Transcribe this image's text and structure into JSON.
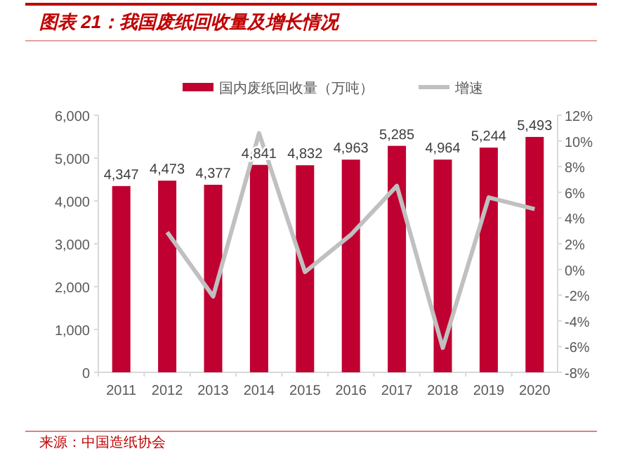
{
  "chart_data": {
    "type": "bar",
    "title": "图表 21：我国废纸回收量及增长情况",
    "categories": [
      "2011",
      "2012",
      "2013",
      "2014",
      "2015",
      "2016",
      "2017",
      "2018",
      "2019",
      "2020"
    ],
    "series": [
      {
        "name": "国内废纸回收量（万吨）",
        "color": "#c00030",
        "values": [
          4347,
          4473,
          4377,
          4841,
          4832,
          4963,
          5285,
          4964,
          5244,
          5493
        ],
        "value_labels": [
          "4,347",
          "4,473",
          "4,377",
          "4,841",
          "4,832",
          "4,963",
          "5,285",
          "4,964",
          "5,244",
          "5,493"
        ]
      },
      {
        "name": "增速",
        "type": "line",
        "axis": "y2",
        "color": "#c0c0c0",
        "values": [
          null,
          2.9,
          -2.1,
          10.6,
          -0.2,
          2.7,
          6.5,
          -6.1,
          5.6,
          4.7
        ]
      }
    ],
    "ylim": [
      0,
      6000
    ],
    "yticks": [
      {
        "value": 0,
        "label": "0"
      },
      {
        "value": 1000,
        "label": "1,000"
      },
      {
        "value": 2000,
        "label": "2,000"
      },
      {
        "value": 3000,
        "label": "3,000"
      },
      {
        "value": 4000,
        "label": "4,000"
      },
      {
        "value": 5000,
        "label": "5,000"
      },
      {
        "value": 6000,
        "label": "6,000"
      }
    ],
    "y2lim": [
      -8,
      12
    ],
    "y2ticks": [
      {
        "value": -8,
        "label": "-8%"
      },
      {
        "value": -6,
        "label": "-6%"
      },
      {
        "value": -4,
        "label": "-4%"
      },
      {
        "value": -2,
        "label": "-2%"
      },
      {
        "value": 0,
        "label": "0%"
      },
      {
        "value": 2,
        "label": "2%"
      },
      {
        "value": 4,
        "label": "4%"
      },
      {
        "value": 6,
        "label": "6%"
      },
      {
        "value": 8,
        "label": "8%"
      },
      {
        "value": 10,
        "label": "10%"
      },
      {
        "value": 12,
        "label": "12%"
      }
    ],
    "legend": "top",
    "annotations": [
      "来源：中国造纸协会"
    ]
  }
}
